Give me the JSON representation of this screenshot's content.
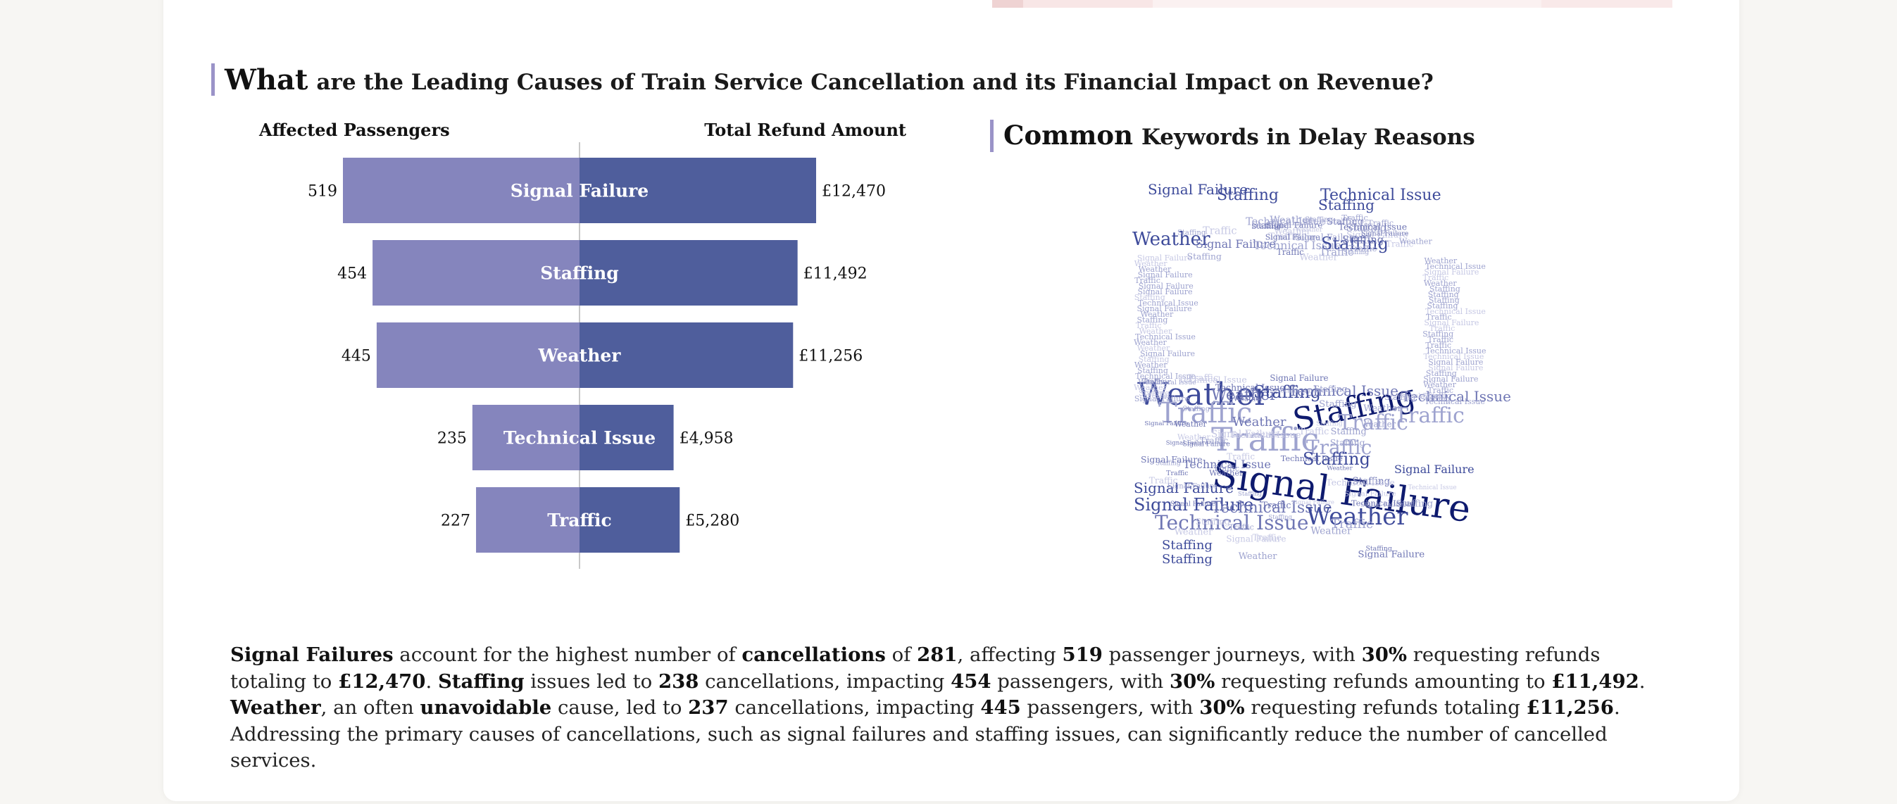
{
  "section": {
    "title_lead": "What",
    "title_rest": "are the Leading Causes of Train Service Cancellation and its Financial Impact on Revenue?"
  },
  "wordcloud_panel": {
    "title_lead": "Common",
    "title_rest": "Keywords in Delay Reasons",
    "words": [
      "Signal Failure",
      "Staffing",
      "Weather",
      "Technical Issue",
      "Traffic"
    ],
    "colors": [
      "#0e1a6e",
      "#3d4a9a",
      "#6f76b4",
      "#9ea3cf",
      "#c6c8e4"
    ]
  },
  "colors": {
    "left_bar": "#8585bd",
    "right_bar": "#4f5e9c",
    "bar_label": "#ffffff",
    "divider": "#c9c9c9",
    "accent_border": "#9a93c8",
    "top_strip": [
      "#efd3d3",
      "#f8e6e6",
      "#fbf1f1",
      "#fbf1f1",
      "#fbf1f1",
      "#f9e9e9"
    ]
  },
  "chart_data": {
    "type": "bar",
    "orientation": "horizontal-butterfly",
    "left_header": "Affected Passengers",
    "right_header": "Total Refund Amount",
    "categories": [
      "Signal Failure",
      "Staffing",
      "Weather",
      "Technical Issue",
      "Traffic"
    ],
    "series": [
      {
        "name": "Affected Passengers",
        "side": "left",
        "values": [
          519,
          454,
          445,
          235,
          227
        ],
        "labels": [
          "519",
          "454",
          "445",
          "235",
          "227"
        ]
      },
      {
        "name": "Total Refund Amount",
        "side": "right",
        "values": [
          12470,
          11492,
          11256,
          4958,
          5280
        ],
        "labels": [
          "£12,470",
          "£11,492",
          "£11,256",
          "£4,958",
          "£5,280"
        ]
      }
    ]
  },
  "summary": {
    "segments": [
      {
        "text": "Signal Failures",
        "bold": true
      },
      {
        "text": " account for the highest number of ",
        "bold": false
      },
      {
        "text": "cancellations",
        "bold": true
      },
      {
        "text": " of ",
        "bold": false
      },
      {
        "text": "281",
        "bold": true
      },
      {
        "text": ", affecting ",
        "bold": false
      },
      {
        "text": "519",
        "bold": true
      },
      {
        "text": " passenger journeys, with ",
        "bold": false
      },
      {
        "text": "30%",
        "bold": true
      },
      {
        "text": " requesting refunds totaling to ",
        "bold": false
      },
      {
        "text": "£12,470",
        "bold": true
      },
      {
        "text": ". ",
        "bold": false
      },
      {
        "text": "Staffing",
        "bold": true
      },
      {
        "text": " issues led to ",
        "bold": false
      },
      {
        "text": "238",
        "bold": true
      },
      {
        "text": " cancellations, impacting ",
        "bold": false
      },
      {
        "text": "454",
        "bold": true
      },
      {
        "text": " passengers, with ",
        "bold": false
      },
      {
        "text": "30%",
        "bold": true
      },
      {
        "text": " requesting refunds amounting to ",
        "bold": false
      },
      {
        "text": "£11,492",
        "bold": true
      },
      {
        "text": ". ",
        "bold": false
      },
      {
        "text": "Weather",
        "bold": true
      },
      {
        "text": ", an often ",
        "bold": false
      },
      {
        "text": "unavoidable",
        "bold": true
      },
      {
        "text": " cause, led to ",
        "bold": false
      },
      {
        "text": "237",
        "bold": true
      },
      {
        "text": " cancellations, impacting ",
        "bold": false
      },
      {
        "text": "445",
        "bold": true
      },
      {
        "text": " passengers, with ",
        "bold": false
      },
      {
        "text": "30%",
        "bold": true
      },
      {
        "text": " requesting refunds totaling ",
        "bold": false
      },
      {
        "text": "£11,256",
        "bold": true
      },
      {
        "text": ". Addressing the primary causes of cancellations, such as signal failures and staffing issues, can significantly reduce the number of cancelled services.",
        "bold": false
      }
    ]
  }
}
